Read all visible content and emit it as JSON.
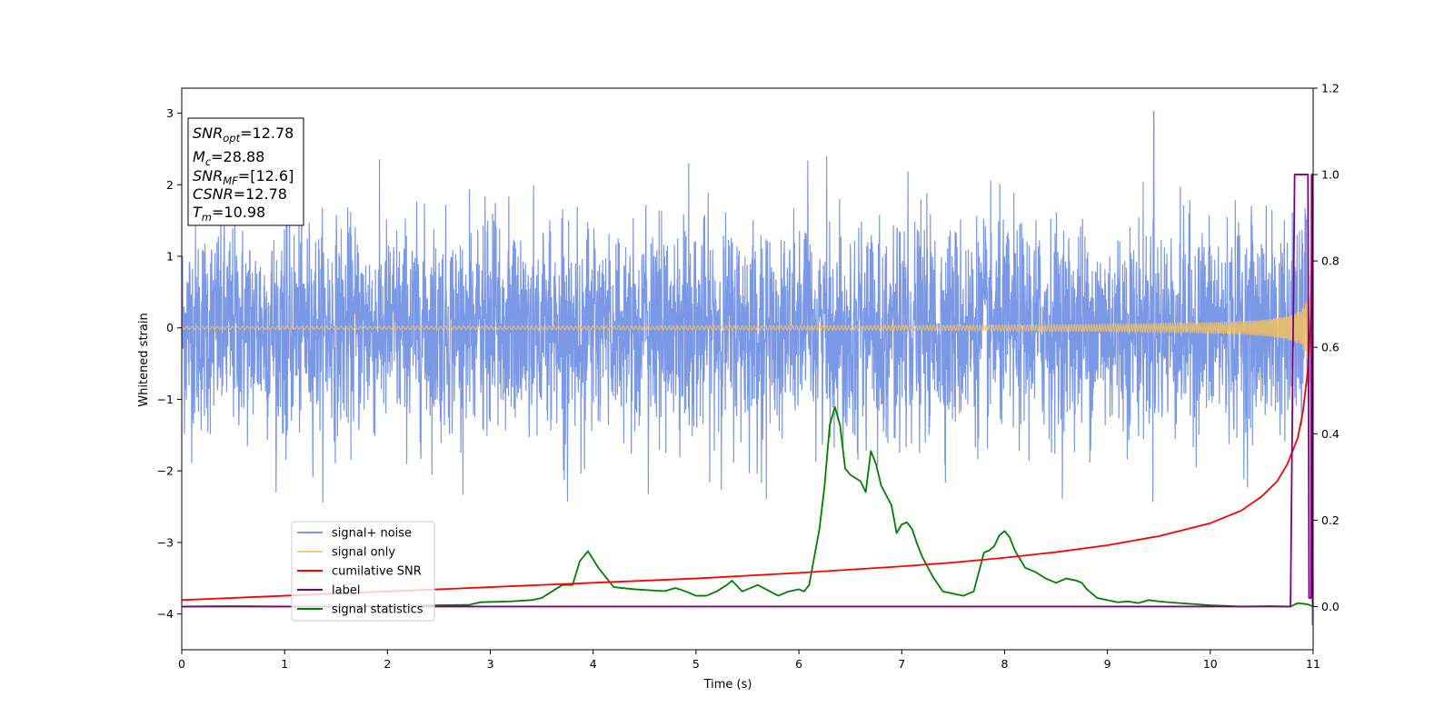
{
  "chart_data": {
    "type": "line",
    "title": "",
    "xlabel": "Time (s)",
    "ylabel": "Whitened strain",
    "xlim": [
      0,
      11
    ],
    "ylim_left": [
      -4.5,
      3.35
    ],
    "ylim_right": [
      -0.1,
      1.2
    ],
    "xticks": [
      "0",
      "1",
      "2",
      "3",
      "4",
      "5",
      "6",
      "7",
      "8",
      "9",
      "10",
      "11"
    ],
    "yticks_left": [
      "3",
      "2",
      "1",
      "0",
      "−1",
      "−2",
      "−3",
      "−4"
    ],
    "yticks_right": [
      "1.2",
      "1.0",
      "0.8",
      "0.6",
      "0.4",
      "0.2",
      "0.0"
    ],
    "grid": false,
    "legend_position": "lower-left",
    "colors": {
      "signal_noise": "#5a7ee0",
      "signal_only": "#f2c060",
      "cumulative_snr": "#ff0000",
      "label": "#800080",
      "signal_statistics": "#008000"
    },
    "series": [
      {
        "key": "signal_noise",
        "name": "signal+ noise",
        "axis": "left",
        "description_values": {
          "typical_range": [
            -2.2,
            2.4
          ],
          "max": 3.02,
          "min": -4.15
        }
      },
      {
        "key": "signal_only",
        "name": "signal only",
        "axis": "left",
        "description_values": {
          "envelope_start": 0.02,
          "envelope_end": 0.9,
          "merger_time": 10.98
        }
      },
      {
        "key": "cumulative_snr",
        "name": "cumilative SNR",
        "axis": "right",
        "x": [
          0,
          1,
          2,
          3,
          4,
          5,
          6,
          7,
          7.5,
          8,
          8.5,
          9,
          9.5,
          10,
          10.3,
          10.5,
          10.65,
          10.75,
          10.85,
          10.9,
          10.95,
          10.98,
          10.99,
          11.0
        ],
        "y": [
          0.015,
          0.025,
          0.035,
          0.045,
          0.055,
          0.065,
          0.078,
          0.093,
          0.102,
          0.113,
          0.126,
          0.142,
          0.163,
          0.193,
          0.222,
          0.255,
          0.29,
          0.33,
          0.39,
          0.45,
          0.55,
          0.68,
          0.9,
          1.0
        ]
      },
      {
        "key": "label",
        "name": "label",
        "axis": "right",
        "x": [
          0,
          10.78,
          10.82,
          10.95,
          10.96,
          10.98,
          10.985,
          10.99,
          10.995,
          11.0
        ],
        "y": [
          0,
          0,
          1,
          1,
          0.02,
          0.02,
          1,
          1,
          0.02,
          0
        ]
      },
      {
        "key": "signal_statistics",
        "name": "signal statistics",
        "axis": "right",
        "x": [
          0,
          0.5,
          1,
          1.5,
          2,
          2.5,
          2.8,
          2.9,
          3.2,
          3.4,
          3.5,
          3.6,
          3.7,
          3.8,
          3.87,
          3.95,
          4.05,
          4.2,
          4.4,
          4.6,
          4.7,
          4.8,
          4.9,
          5.0,
          5.1,
          5.2,
          5.3,
          5.35,
          5.45,
          5.5,
          5.6,
          5.8,
          5.9,
          6.0,
          6.05,
          6.1,
          6.2,
          6.25,
          6.3,
          6.35,
          6.4,
          6.45,
          6.5,
          6.6,
          6.65,
          6.7,
          6.75,
          6.8,
          6.9,
          6.95,
          7.0,
          7.05,
          7.1,
          7.15,
          7.2,
          7.3,
          7.4,
          7.5,
          7.6,
          7.7,
          7.8,
          7.85,
          7.9,
          7.95,
          8.0,
          8.05,
          8.1,
          8.15,
          8.2,
          8.3,
          8.4,
          8.5,
          8.55,
          8.6,
          8.7,
          8.75,
          8.8,
          8.9,
          9.0,
          9.1,
          9.2,
          9.3,
          9.4,
          9.5,
          9.6,
          9.7,
          10.0,
          10.3,
          10.6,
          10.75,
          10.78,
          10.85,
          10.95,
          11.0
        ],
        "y": [
          0.0,
          0.001,
          0.0,
          0.0,
          0.001,
          0.003,
          0.004,
          0.01,
          0.012,
          0.015,
          0.02,
          0.035,
          0.05,
          0.05,
          0.105,
          0.128,
          0.09,
          0.045,
          0.04,
          0.037,
          0.036,
          0.043,
          0.035,
          0.025,
          0.025,
          0.035,
          0.05,
          0.06,
          0.035,
          0.04,
          0.05,
          0.025,
          0.035,
          0.04,
          0.035,
          0.05,
          0.18,
          0.28,
          0.42,
          0.462,
          0.42,
          0.32,
          0.305,
          0.29,
          0.265,
          0.36,
          0.33,
          0.28,
          0.235,
          0.17,
          0.19,
          0.195,
          0.18,
          0.145,
          0.115,
          0.07,
          0.035,
          0.03,
          0.025,
          0.035,
          0.125,
          0.13,
          0.14,
          0.165,
          0.175,
          0.16,
          0.13,
          0.11,
          0.09,
          0.08,
          0.065,
          0.055,
          0.06,
          0.065,
          0.06,
          0.055,
          0.04,
          0.02,
          0.015,
          0.01,
          0.012,
          0.008,
          0.015,
          0.012,
          0.01,
          0.008,
          0.003,
          0.0,
          0.001,
          0.0,
          0.0,
          0.008,
          0.005,
          0.0
        ]
      }
    ],
    "annotation": {
      "lines": [
        {
          "base": "SNR",
          "sub": "opt",
          "value": "=12.78"
        },
        {
          "base": "M",
          "sub": "c",
          "value": "=28.88"
        },
        {
          "base": "SNR",
          "sub": "MF",
          "value": "=[12.6]"
        },
        {
          "base": "CSNR",
          "sub": "",
          "value": "=12.78"
        },
        {
          "base": "T",
          "sub": "m",
          "value": "=10.98"
        }
      ]
    }
  }
}
